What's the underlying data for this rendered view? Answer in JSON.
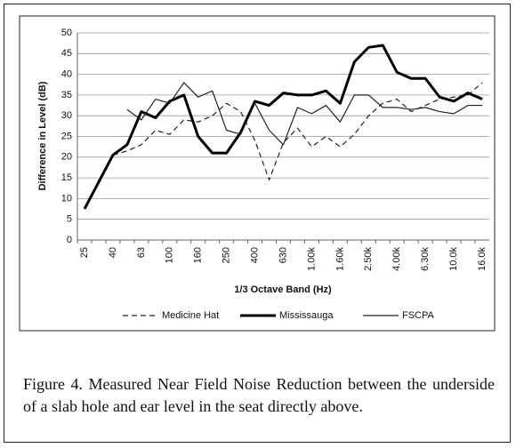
{
  "chart_data": {
    "type": "line",
    "y_label": "Difference in Level (dB)",
    "x_label": "1/3 Octave Band (Hz)",
    "categories": [
      "25",
      null,
      "40",
      null,
      "63",
      null,
      "100",
      null,
      "160",
      null,
      "250",
      null,
      "400",
      null,
      "630",
      null,
      "1.00k",
      null,
      "1.60k",
      null,
      "2.50k",
      null,
      "4.00k",
      null,
      "6.30k",
      null,
      "10.0k",
      null,
      "16.0k"
    ],
    "series": [
      {
        "name": "Medicine Hat",
        "color": "#222",
        "dash": "6,4",
        "width": 1.2,
        "values": [
          null,
          null,
          20.5,
          21.5,
          23,
          26.5,
          25.5,
          29,
          28.5,
          30,
          33,
          31,
          24,
          14.5,
          23.5,
          27,
          22.5,
          25,
          22.5,
          25.5,
          30,
          33,
          34,
          31,
          32.5,
          34,
          34.5,
          35,
          38
        ]
      },
      {
        "name": "Mississauga",
        "color": "#000",
        "dash": "none",
        "width": 3,
        "values": [
          7.5,
          14,
          20.5,
          23,
          31,
          29.5,
          33.5,
          35,
          25,
          21,
          21,
          26,
          33.5,
          32.5,
          35.5,
          35,
          35,
          36,
          33,
          43,
          46.5,
          47,
          40.5,
          39,
          39,
          34.5,
          33.5,
          35.5,
          34
        ]
      },
      {
        "name": "FSCPA",
        "color": "#222",
        "dash": "none",
        "width": 1.2,
        "values": [
          null,
          null,
          null,
          31.5,
          29,
          34,
          33,
          38,
          34.5,
          36,
          26.5,
          25.5,
          33,
          26.5,
          23,
          32,
          30.5,
          32.5,
          28.5,
          35,
          35,
          32,
          32,
          31.5,
          32,
          31,
          30.5,
          32.5,
          32.5
        ]
      }
    ],
    "ylim": [
      0,
      50
    ],
    "yticks": [
      0,
      5,
      10,
      15,
      20,
      25,
      30,
      35,
      40,
      45,
      50
    ],
    "grid": true
  },
  "caption": "Figure 4. Measured Near Field Noise Reduction between the underside of a slab hole and ear level in the seat directly above."
}
